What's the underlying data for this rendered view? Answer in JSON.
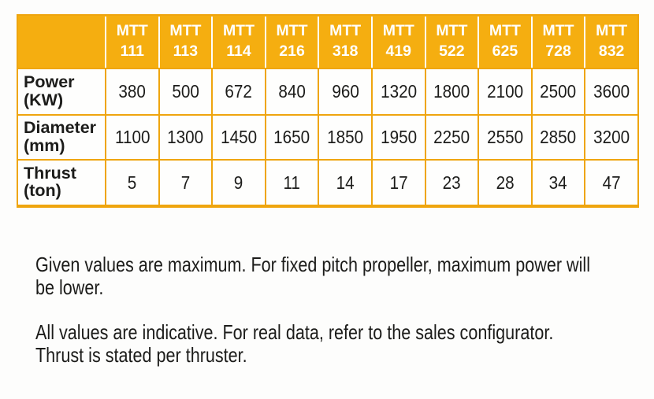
{
  "table": {
    "corner_label": "",
    "columns": [
      {
        "series": "MTT",
        "model": "111"
      },
      {
        "series": "MTT",
        "model": "113"
      },
      {
        "series": "MTT",
        "model": "114"
      },
      {
        "series": "MTT",
        "model": "216"
      },
      {
        "series": "MTT",
        "model": "318"
      },
      {
        "series": "MTT",
        "model": "419"
      },
      {
        "series": "MTT",
        "model": "522"
      },
      {
        "series": "MTT",
        "model": "625"
      },
      {
        "series": "MTT",
        "model": "728"
      },
      {
        "series": "MTT",
        "model": "832"
      }
    ],
    "rows": [
      {
        "label": "Power",
        "unit": "(KW)",
        "values": [
          "380",
          "500",
          "672",
          "840",
          "960",
          "1320",
          "1800",
          "2100",
          "2500",
          "3600"
        ]
      },
      {
        "label": "Diameter",
        "unit": "(mm)",
        "values": [
          "1100",
          "1300",
          "1450",
          "1650",
          "1850",
          "1950",
          "2250",
          "2550",
          "2850",
          "3200"
        ]
      },
      {
        "label": "Thrust",
        "unit": "(ton)",
        "values": [
          "5",
          "7",
          "9",
          "11",
          "14",
          "17",
          "23",
          "28",
          "34",
          "47"
        ]
      }
    ]
  },
  "notes": [
    {
      "lines": [
        "Given values are maximum. For fixed pitch propeller, maximum power will",
        "be lower."
      ]
    },
    {
      "lines": [
        "All values are indicative. For real data, refer to the sales configurator.",
        "Thrust is stated per thruster."
      ]
    }
  ],
  "colors": {
    "accent_orange": "#f5ae10",
    "grid_orange": "#efa50e",
    "header_text": "#ffffff",
    "body_text": "#1c1c1a",
    "background": "#fdfdfc"
  },
  "chart_data": {
    "type": "table",
    "title": "",
    "columns": [
      "",
      "MTT 111",
      "MTT 113",
      "MTT 114",
      "MTT 216",
      "MTT 318",
      "MTT 419",
      "MTT 522",
      "MTT 625",
      "MTT 728",
      "MTT 832"
    ],
    "rows": [
      [
        "Power (KW)",
        380,
        500,
        672,
        840,
        960,
        1320,
        1800,
        2100,
        2500,
        3600
      ],
      [
        "Diameter (mm)",
        1100,
        1300,
        1450,
        1650,
        1850,
        1950,
        2250,
        2550,
        2850,
        3200
      ],
      [
        "Thrust (ton)",
        5,
        7,
        9,
        11,
        14,
        17,
        23,
        28,
        34,
        47
      ]
    ]
  }
}
